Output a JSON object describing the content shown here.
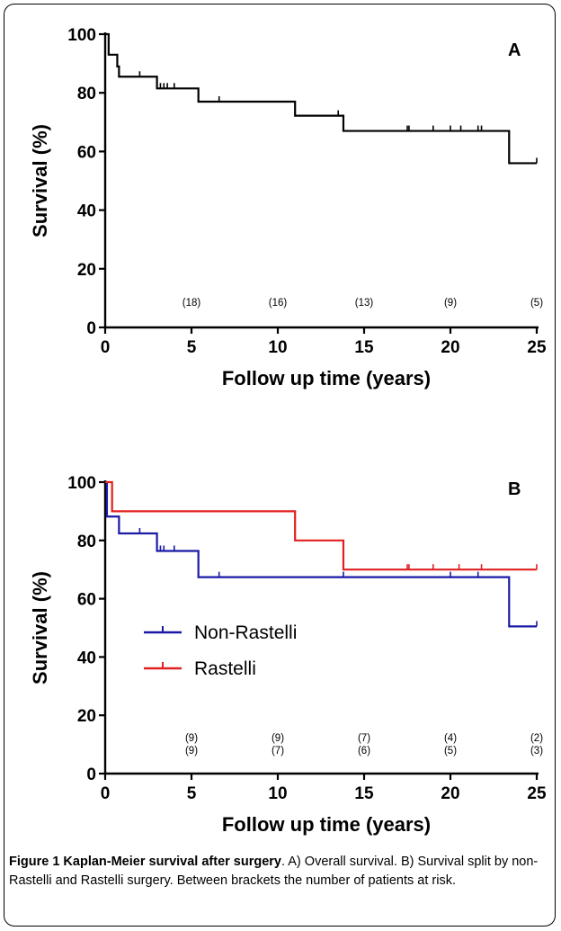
{
  "chart_data": [
    {
      "type": "line",
      "panel_label": "A",
      "xlabel": "Follow up time (years)",
      "ylabel": "Survival (%)",
      "xlim": [
        0,
        25
      ],
      "ylim": [
        0,
        100
      ],
      "xticks": [
        "0",
        "5",
        "10",
        "15",
        "20",
        "25"
      ],
      "yticks": [
        "0",
        "20",
        "40",
        "60",
        "80",
        "100"
      ],
      "series": [
        {
          "color": "#000000",
          "steps": [
            [
              0,
              100
            ],
            [
              0.2,
              93
            ],
            [
              0.7,
              89
            ],
            [
              0.8,
              85.5
            ],
            [
              3,
              81.5
            ],
            [
              5.4,
              77
            ],
            [
              11,
              72.2
            ],
            [
              13.8,
              67
            ],
            [
              23.4,
              56
            ],
            [
              25,
              56
            ]
          ],
          "censored": [
            [
              2,
              85.5
            ],
            [
              3.2,
              81.5
            ],
            [
              3.4,
              81.5
            ],
            [
              3.6,
              81.5
            ],
            [
              4,
              81.5
            ],
            [
              6.6,
              77
            ],
            [
              13.5,
              72.2
            ],
            [
              17.5,
              67
            ],
            [
              17.6,
              67
            ],
            [
              19,
              67
            ],
            [
              20,
              67
            ],
            [
              20.6,
              67
            ],
            [
              21.6,
              67
            ],
            [
              21.8,
              67
            ],
            [
              25,
              56
            ]
          ]
        }
      ],
      "at_risk": [
        {
          "x": 5,
          "top": "(18)"
        },
        {
          "x": 10,
          "top": "(16)"
        },
        {
          "x": 15,
          "top": "(13)"
        },
        {
          "x": 20,
          "top": "(9)"
        },
        {
          "x": 25,
          "top": "(5)"
        }
      ]
    },
    {
      "type": "line",
      "panel_label": "B",
      "xlabel": "Follow up time (years)",
      "ylabel": "Survival (%)",
      "xlim": [
        0,
        25
      ],
      "ylim": [
        0,
        100
      ],
      "xticks": [
        "0",
        "5",
        "10",
        "15",
        "20",
        "25"
      ],
      "yticks": [
        "0",
        "20",
        "40",
        "60",
        "80",
        "100"
      ],
      "series": [
        {
          "name": "Non-Rastelli",
          "color": "#1a1aa6",
          "steps": [
            [
              0,
              100
            ],
            [
              0.1,
              88.2
            ],
            [
              0.8,
              82.4
            ],
            [
              3,
              76.4
            ],
            [
              5.4,
              67.4
            ],
            [
              23.4,
              50.5
            ],
            [
              25,
              50.5
            ]
          ],
          "censored": [
            [
              2,
              82.4
            ],
            [
              3.2,
              76.4
            ],
            [
              3.4,
              76.4
            ],
            [
              4,
              76.4
            ],
            [
              6.6,
              67.4
            ],
            [
              13.8,
              67.4
            ],
            [
              20,
              67.4
            ],
            [
              21.6,
              67.4
            ],
            [
              25,
              50.5
            ]
          ]
        },
        {
          "name": "Rastelli",
          "color": "#e02020",
          "steps": [
            [
              0,
              100
            ],
            [
              0.4,
              90
            ],
            [
              11,
              80
            ],
            [
              13.8,
              70
            ],
            [
              25,
              70
            ]
          ],
          "censored": [
            [
              11,
              80
            ],
            [
              13.8,
              70
            ],
            [
              17.5,
              70
            ],
            [
              17.6,
              70
            ],
            [
              19,
              70
            ],
            [
              20.5,
              70
            ],
            [
              21.8,
              70
            ],
            [
              25,
              70
            ]
          ]
        }
      ],
      "at_risk": [
        {
          "x": 5,
          "top": "(9)",
          "bottom": "(9)"
        },
        {
          "x": 10,
          "top": "(9)",
          "bottom": "(7)"
        },
        {
          "x": 15,
          "top": "(7)",
          "bottom": "(6)"
        },
        {
          "x": 20,
          "top": "(4)",
          "bottom": "(5)"
        },
        {
          "x": 25,
          "top": "(2)",
          "bottom": "(3)"
        }
      ]
    }
  ],
  "caption": {
    "title": "Figure 1 Kaplan-Meier survival after surgery",
    "text": ". A) Overall survival. B) Survival split by non-Rastelli and Rastelli surgery. Between brackets the number of patients at risk."
  }
}
